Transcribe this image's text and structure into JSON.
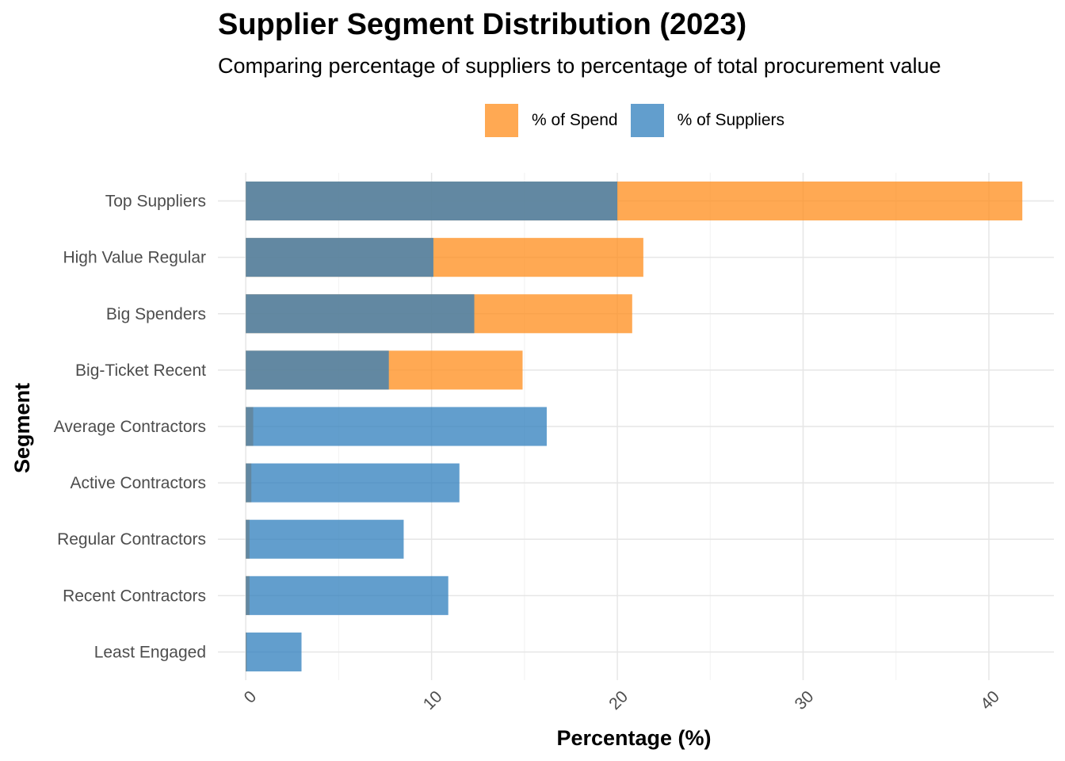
{
  "chart_data": {
    "type": "bar",
    "orientation": "horizontal",
    "overlay": true,
    "title": "Supplier Segment Distribution (2023)",
    "subtitle": "Comparing percentage of suppliers to percentage of total procurement value",
    "xlabel": "Percentage (%)",
    "ylabel": "Segment",
    "xlim": [
      -1.5,
      43.5
    ],
    "xticks": [
      0,
      10,
      20,
      30,
      40
    ],
    "grid": true,
    "legend_position": "top",
    "categories": [
      "Top Suppliers",
      "High Value Regular",
      "Big Spenders",
      "Big-Ticket Recent",
      "Average Contractors",
      "Active Contractors",
      "Regular Contractors",
      "Recent Contractors",
      "Least Engaged"
    ],
    "series": [
      {
        "name": "% of Spend",
        "color": "#ff8c1a",
        "values": [
          41.8,
          21.4,
          20.8,
          14.9,
          0.4,
          0.3,
          0.2,
          0.2,
          0.05
        ]
      },
      {
        "name": "% of Suppliers",
        "color": "#2e7ebc",
        "values": [
          20.0,
          10.1,
          12.3,
          7.7,
          16.2,
          11.5,
          8.5,
          10.9,
          3.0
        ]
      }
    ]
  }
}
